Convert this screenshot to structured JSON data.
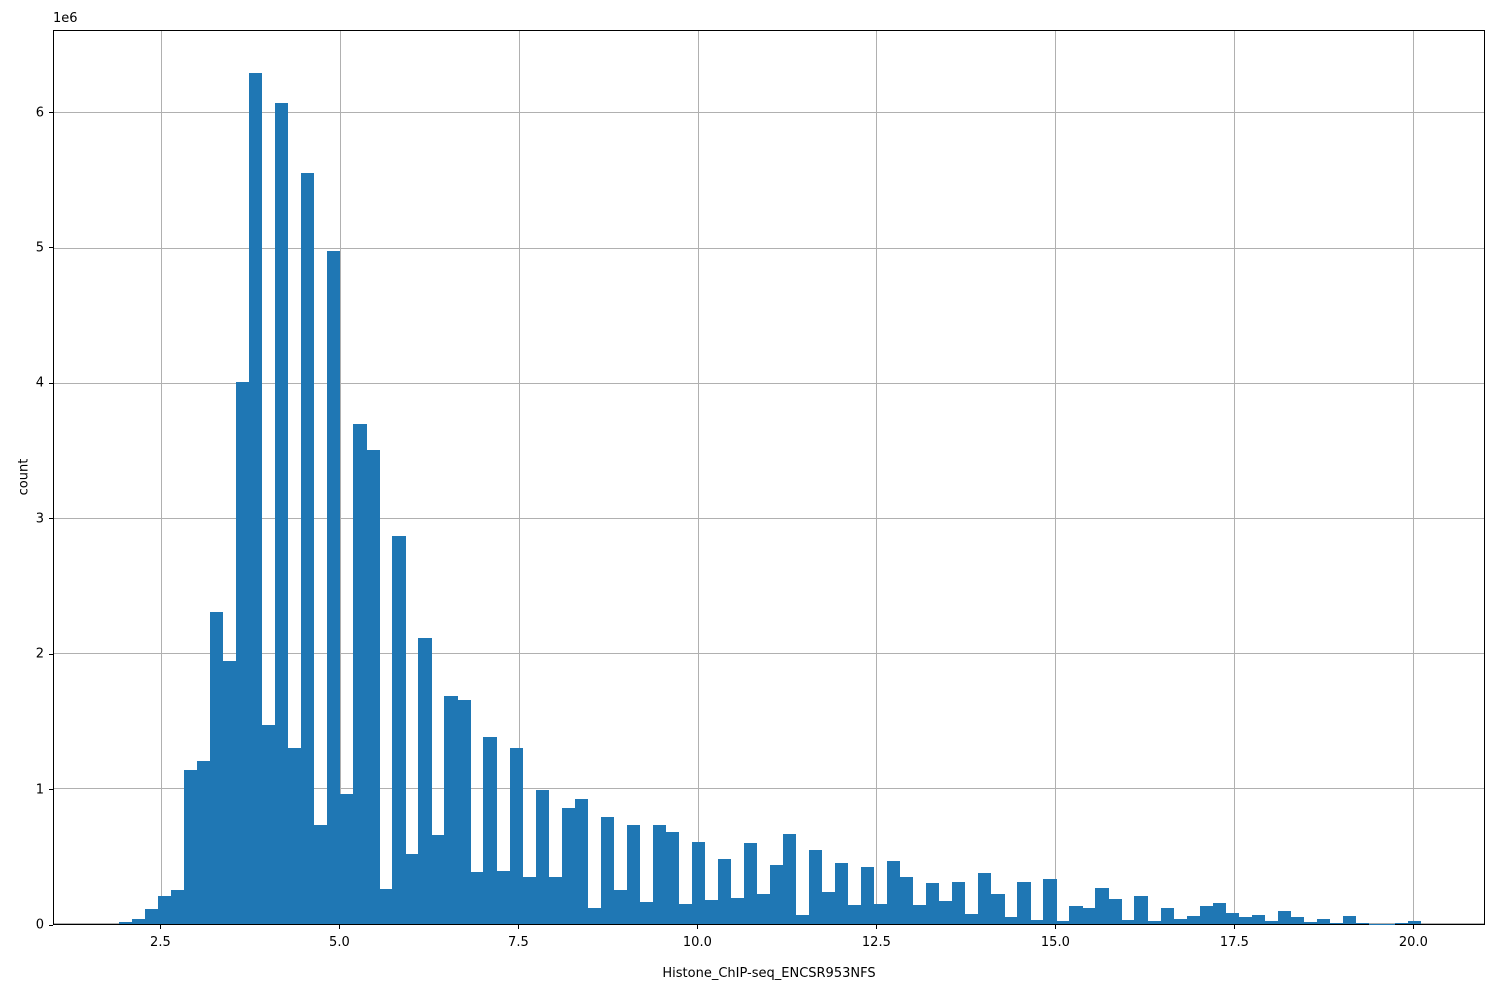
{
  "chart_data": {
    "type": "bar",
    "title": "",
    "xlabel": "Histone_ChIP-seq_ENCSR953NFS",
    "ylabel": "count",
    "offset_text": "1e6",
    "bar_color": "#1f77b4",
    "grid": true,
    "legend": null,
    "xlim": [
      1.0,
      21.0
    ],
    "ylim": [
      0,
      6610000
    ],
    "x_ticks": [
      2.5,
      5.0,
      7.5,
      10.0,
      12.5,
      15.0,
      17.5,
      20.0
    ],
    "x_tick_labels": [
      "2.5",
      "5.0",
      "7.5",
      "10.0",
      "12.5",
      "15.0",
      "17.5",
      "20.0"
    ],
    "y_ticks": [
      0,
      1000000,
      2000000,
      3000000,
      4000000,
      5000000,
      6000000
    ],
    "y_tick_labels": [
      "0",
      "1",
      "2",
      "3",
      "4",
      "5",
      "6"
    ],
    "bin_start": 1.908,
    "bin_width": 0.1821,
    "counts": [
      13000,
      40000,
      110000,
      210000,
      255000,
      1140000,
      1210000,
      2310000,
      1950000,
      4010000,
      6300000,
      1475000,
      6080000,
      1300000,
      5560000,
      730000,
      4980000,
      960000,
      3700000,
      3510000,
      260000,
      2870000,
      520000,
      2120000,
      660000,
      1690000,
      1655000,
      385000,
      1385000,
      390000,
      1300000,
      345000,
      990000,
      350000,
      860000,
      925000,
      115000,
      790000,
      255000,
      730000,
      160000,
      730000,
      680000,
      145000,
      610000,
      180000,
      480000,
      190000,
      600000,
      225000,
      435000,
      665000,
      65000,
      550000,
      235000,
      450000,
      140000,
      420000,
      150000,
      465000,
      350000,
      140000,
      300000,
      170000,
      310000,
      75000,
      380000,
      220000,
      50000,
      310000,
      30000,
      330000,
      25000,
      130000,
      115000,
      270000,
      185000,
      30000,
      210000,
      20000,
      120000,
      40000,
      60000,
      135000,
      155000,
      85000,
      55000,
      70000,
      20000,
      100000,
      50000,
      12000,
      40000,
      8000,
      58000,
      4000,
      3000,
      3000,
      4000,
      26000
    ]
  }
}
